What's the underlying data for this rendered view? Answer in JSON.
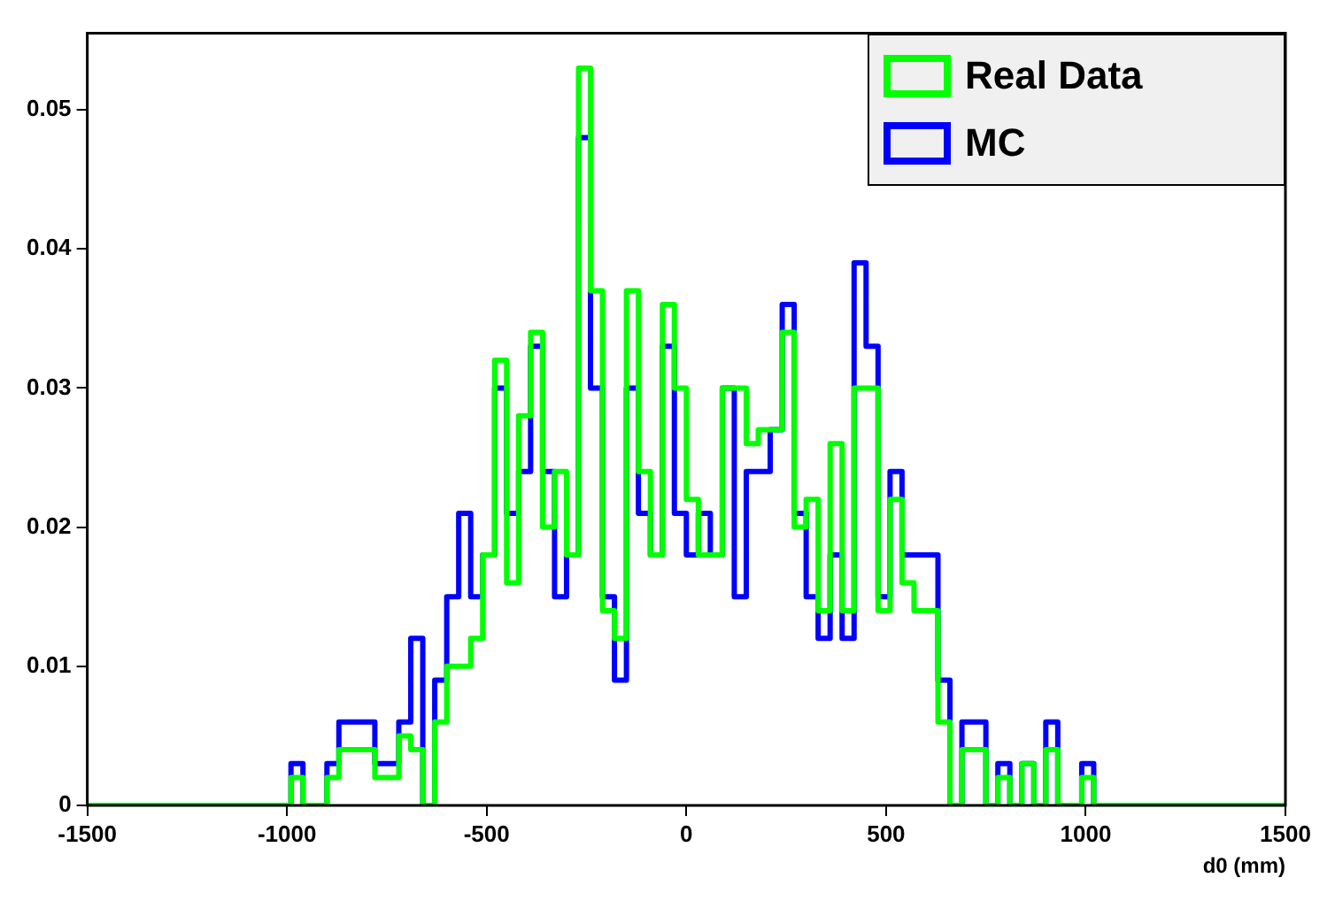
{
  "chart_data": {
    "type": "histogram",
    "xlabel": "d0 (mm)",
    "legend": "top right",
    "grid": false,
    "bins": [
      -1500,
      -1470,
      -1440,
      -1410,
      -1380,
      -1350,
      -1320,
      -1290,
      -1260,
      -1230,
      -1200,
      -1170,
      -1140,
      -1110,
      -1080,
      -1050,
      -1020,
      -990,
      -960,
      -930,
      -900,
      -870,
      -840,
      -810,
      -780,
      -750,
      -720,
      -690,
      -660,
      -630,
      -600,
      -570,
      -540,
      -510,
      -480,
      -450,
      -420,
      -390,
      -360,
      -330,
      -300,
      -270,
      -240,
      -210,
      -180,
      -150,
      -120,
      -90,
      -60,
      -30,
      0,
      30,
      60,
      90,
      120,
      150,
      180,
      210,
      240,
      270,
      300,
      330,
      360,
      390,
      420,
      450,
      480,
      510,
      540,
      570,
      600,
      630,
      660,
      690,
      720,
      750,
      780,
      810,
      840,
      870,
      900,
      930,
      960,
      990,
      1020,
      1050,
      1080,
      1110,
      1140,
      1170,
      1200,
      1230,
      1260,
      1290,
      1320,
      1350,
      1380,
      1410,
      1440,
      1470,
      1500
    ],
    "series": [
      {
        "name": "Real Data",
        "color": "#00ff00",
        "values": [
          0,
          0,
          0,
          0,
          0,
          0,
          0,
          0,
          0,
          0,
          0,
          0,
          0,
          0,
          0,
          0,
          0,
          0.002,
          0,
          0,
          0.002,
          0.004,
          0.004,
          0.004,
          0.002,
          0.002,
          0.005,
          0.004,
          0,
          0.006,
          0.01,
          0.01,
          0.012,
          0.018,
          0.032,
          0.016,
          0.028,
          0.034,
          0.02,
          0.024,
          0.018,
          0.053,
          0.037,
          0.014,
          0.012,
          0.037,
          0.024,
          0.018,
          0.036,
          0.03,
          0.022,
          0.018,
          0.018,
          0.03,
          0.03,
          0.026,
          0.027,
          0.027,
          0.034,
          0.02,
          0.022,
          0.014,
          0.026,
          0.014,
          0.03,
          0.03,
          0.014,
          0.022,
          0.016,
          0.014,
          0.014,
          0.006,
          0,
          0.004,
          0.004,
          0,
          0.002,
          0,
          0.003,
          0,
          0.004,
          0,
          0,
          0.002,
          0,
          0,
          0,
          0,
          0,
          0,
          0,
          0,
          0,
          0,
          0,
          0,
          0,
          0,
          0,
          0
        ]
      },
      {
        "name": "MC",
        "color": "#0000ff",
        "values": [
          0,
          0,
          0,
          0,
          0,
          0,
          0,
          0,
          0,
          0,
          0,
          0,
          0,
          0,
          0,
          0,
          0,
          0.003,
          0,
          0,
          0.003,
          0.006,
          0.006,
          0.006,
          0.003,
          0.003,
          0.006,
          0.012,
          0,
          0.009,
          0.015,
          0.021,
          0.015,
          0.018,
          0.03,
          0.021,
          0.024,
          0.033,
          0.024,
          0.015,
          0.018,
          0.048,
          0.03,
          0.015,
          0.009,
          0.03,
          0.021,
          0.018,
          0.033,
          0.021,
          0.018,
          0.021,
          0.018,
          0.03,
          0.015,
          0.024,
          0.024,
          0.027,
          0.036,
          0.021,
          0.015,
          0.012,
          0.018,
          0.012,
          0.039,
          0.033,
          0.015,
          0.024,
          0.018,
          0.018,
          0.018,
          0.009,
          0,
          0.006,
          0.006,
          0,
          0.003,
          0,
          0.003,
          0,
          0.006,
          0,
          0,
          0.003,
          0,
          0,
          0,
          0,
          0,
          0,
          0,
          0,
          0,
          0,
          0,
          0,
          0,
          0,
          0,
          0
        ]
      }
    ],
    "xlim": [
      -1500,
      1500
    ],
    "xticks": [
      -1500,
      -1000,
      -500,
      0,
      500,
      1000,
      1500
    ],
    "ylim": [
      0,
      0.0555
    ],
    "yticks": [
      0,
      0.01,
      0.02,
      0.03,
      0.04,
      0.05
    ]
  }
}
